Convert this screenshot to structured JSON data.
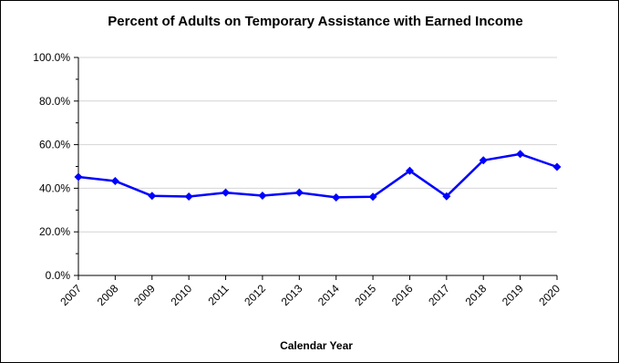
{
  "chart_data": {
    "type": "line",
    "title": "Percent of Adults on Temporary Assistance with Earned Income",
    "xlabel": "Calendar Year",
    "ylabel": "",
    "categories": [
      "2007",
      "2008",
      "2009",
      "2010",
      "2011",
      "2012",
      "2013",
      "2014",
      "2015",
      "2016",
      "2017",
      "2018",
      "2019",
      "2020"
    ],
    "series": [
      {
        "values": [
          45.2,
          43.3,
          36.5,
          36.2,
          38.0,
          36.6,
          38.0,
          35.8,
          36.1,
          48.0,
          36.3,
          52.8,
          55.7,
          49.8
        ],
        "color": "#0000ff"
      }
    ],
    "yticks": [
      "0.0%",
      "20.0%",
      "40.0%",
      "60.0%",
      "80.0%",
      "100.0%"
    ],
    "ylim": [
      0,
      100
    ],
    "grid": true,
    "legend": "none"
  }
}
